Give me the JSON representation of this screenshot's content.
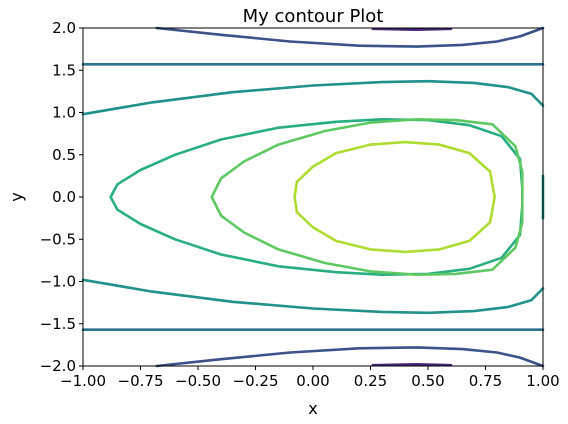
{
  "chart_data": {
    "type": "contour",
    "title": "My contour Plot",
    "xlabel": "x",
    "ylabel": "y",
    "xlim": [
      -1.0,
      1.0
    ],
    "ylim": [
      -2.0,
      2.0
    ],
    "xticks": [
      "−1.00",
      "−0.75",
      "−0.50",
      "−0.25",
      "0.00",
      "0.25",
      "0.50",
      "0.75",
      "1.00"
    ],
    "xtick_values": [
      -1.0,
      -0.75,
      -0.5,
      -0.25,
      0.0,
      0.25,
      0.5,
      0.75,
      1.0
    ],
    "yticks": [
      "−2.0",
      "−1.5",
      "−1.0",
      "−0.5",
      "0.0",
      "0.5",
      "1.0",
      "1.5",
      "2.0"
    ],
    "ytick_values": [
      -2.0,
      -1.5,
      -1.0,
      -0.5,
      0.0,
      0.5,
      1.0,
      1.5,
      2.0
    ],
    "grid": false,
    "colormap": [
      "#482475",
      "#3b528b",
      "#2c728e",
      "#21918c",
      "#28ae80",
      "#5ec962",
      "#addc30"
    ],
    "levels": [
      {
        "level": -0.75,
        "color": "#482475",
        "paths": [
          [
            [
              0.26,
              1.99
            ],
            [
              0.45,
              1.98
            ],
            [
              0.6,
              1.99
            ]
          ],
          [
            [
              0.26,
              -1.99
            ],
            [
              0.45,
              -1.98
            ],
            [
              0.6,
              -1.99
            ]
          ]
        ]
      },
      {
        "level": -0.5,
        "color": "#3b528b",
        "paths": [
          [
            [
              -0.68,
              2.0
            ],
            [
              -0.4,
              1.92
            ],
            [
              -0.1,
              1.84
            ],
            [
              0.2,
              1.79
            ],
            [
              0.45,
              1.78
            ],
            [
              0.65,
              1.8
            ],
            [
              0.8,
              1.84
            ],
            [
              0.9,
              1.9
            ],
            [
              0.97,
              1.97
            ],
            [
              1.0,
              2.0
            ]
          ],
          [
            [
              -0.68,
              -2.0
            ],
            [
              -0.4,
              -1.92
            ],
            [
              -0.1,
              -1.84
            ],
            [
              0.2,
              -1.79
            ],
            [
              0.45,
              -1.78
            ],
            [
              0.65,
              -1.8
            ],
            [
              0.8,
              -1.84
            ],
            [
              0.9,
              -1.9
            ],
            [
              0.97,
              -1.97
            ],
            [
              1.0,
              -2.0
            ]
          ]
        ]
      },
      {
        "level": 0.0,
        "color": "#2c728e",
        "paths": [
          [
            [
              -1.0,
              1.57
            ],
            [
              1.0,
              1.57
            ]
          ],
          [
            [
              -1.0,
              -1.57
            ],
            [
              1.0,
              -1.57
            ]
          ]
        ]
      },
      {
        "level": 0.25,
        "color": "#21918c",
        "paths": [
          [
            [
              -1.0,
              0.98
            ],
            [
              -0.7,
              1.12
            ],
            [
              -0.35,
              1.24
            ],
            [
              0.0,
              1.32
            ],
            [
              0.3,
              1.36
            ],
            [
              0.5,
              1.37
            ],
            [
              0.7,
              1.35
            ],
            [
              0.85,
              1.3
            ],
            [
              0.95,
              1.22
            ],
            [
              1.0,
              1.08
            ]
          ],
          [
            [
              -1.0,
              -0.98
            ],
            [
              -0.7,
              -1.12
            ],
            [
              -0.35,
              -1.24
            ],
            [
              0.0,
              -1.32
            ],
            [
              0.3,
              -1.36
            ],
            [
              0.5,
              -1.37
            ],
            [
              0.7,
              -1.35
            ],
            [
              0.85,
              -1.3
            ],
            [
              0.95,
              -1.22
            ],
            [
              1.0,
              -1.08
            ]
          ],
          [
            [
              1.0,
              0.25
            ],
            [
              1.0,
              -0.25
            ]
          ]
        ]
      },
      {
        "level": 0.5,
        "color": "#28ae80",
        "paths": [
          [
            [
              0.91,
              -0.1
            ],
            [
              0.9,
              -0.45
            ],
            [
              0.82,
              -0.72
            ],
            [
              0.68,
              -0.85
            ],
            [
              0.5,
              -0.91
            ],
            [
              0.3,
              -0.92
            ],
            [
              0.1,
              -0.89
            ],
            [
              -0.15,
              -0.82
            ],
            [
              -0.4,
              -0.68
            ],
            [
              -0.6,
              -0.5
            ],
            [
              -0.75,
              -0.32
            ],
            [
              -0.85,
              -0.15
            ],
            [
              -0.88,
              0.0
            ],
            [
              -0.85,
              0.15
            ],
            [
              -0.75,
              0.32
            ],
            [
              -0.6,
              0.5
            ],
            [
              -0.4,
              0.68
            ],
            [
              -0.15,
              0.82
            ],
            [
              0.1,
              0.89
            ],
            [
              0.3,
              0.92
            ],
            [
              0.5,
              0.91
            ],
            [
              0.68,
              0.85
            ],
            [
              0.82,
              0.72
            ],
            [
              0.9,
              0.45
            ],
            [
              0.91,
              0.1
            ]
          ]
        ]
      },
      {
        "level": 0.75,
        "color": "#5ec962",
        "paths": [
          [
            [
              0.91,
              0.0
            ],
            [
              0.91,
              -0.3
            ],
            [
              0.88,
              -0.6
            ],
            [
              0.78,
              -0.86
            ],
            [
              0.62,
              -0.91
            ],
            [
              0.45,
              -0.92
            ],
            [
              0.25,
              -0.88
            ],
            [
              0.05,
              -0.78
            ],
            [
              -0.15,
              -0.62
            ],
            [
              -0.3,
              -0.42
            ],
            [
              -0.4,
              -0.22
            ],
            [
              -0.44,
              0.0
            ],
            [
              -0.4,
              0.22
            ],
            [
              -0.3,
              0.42
            ],
            [
              -0.15,
              0.62
            ],
            [
              0.05,
              0.78
            ],
            [
              0.25,
              0.88
            ],
            [
              0.45,
              0.92
            ],
            [
              0.62,
              0.91
            ],
            [
              0.78,
              0.86
            ],
            [
              0.88,
              0.6
            ],
            [
              0.91,
              0.3
            ],
            [
              0.91,
              0.0
            ]
          ]
        ]
      },
      {
        "level": 1.0,
        "color": "#addc30",
        "paths": [
          [
            [
              0.79,
              0.0
            ],
            [
              0.77,
              -0.3
            ],
            [
              0.68,
              -0.52
            ],
            [
              0.55,
              -0.62
            ],
            [
              0.4,
              -0.65
            ],
            [
              0.25,
              -0.62
            ],
            [
              0.1,
              -0.52
            ],
            [
              0.0,
              -0.36
            ],
            [
              -0.07,
              -0.18
            ],
            [
              -0.08,
              0.0
            ],
            [
              -0.07,
              0.18
            ],
            [
              0.0,
              0.36
            ],
            [
              0.1,
              0.52
            ],
            [
              0.25,
              0.62
            ],
            [
              0.4,
              0.65
            ],
            [
              0.55,
              0.62
            ],
            [
              0.68,
              0.52
            ],
            [
              0.77,
              0.3
            ],
            [
              0.79,
              0.0
            ]
          ]
        ]
      }
    ]
  }
}
